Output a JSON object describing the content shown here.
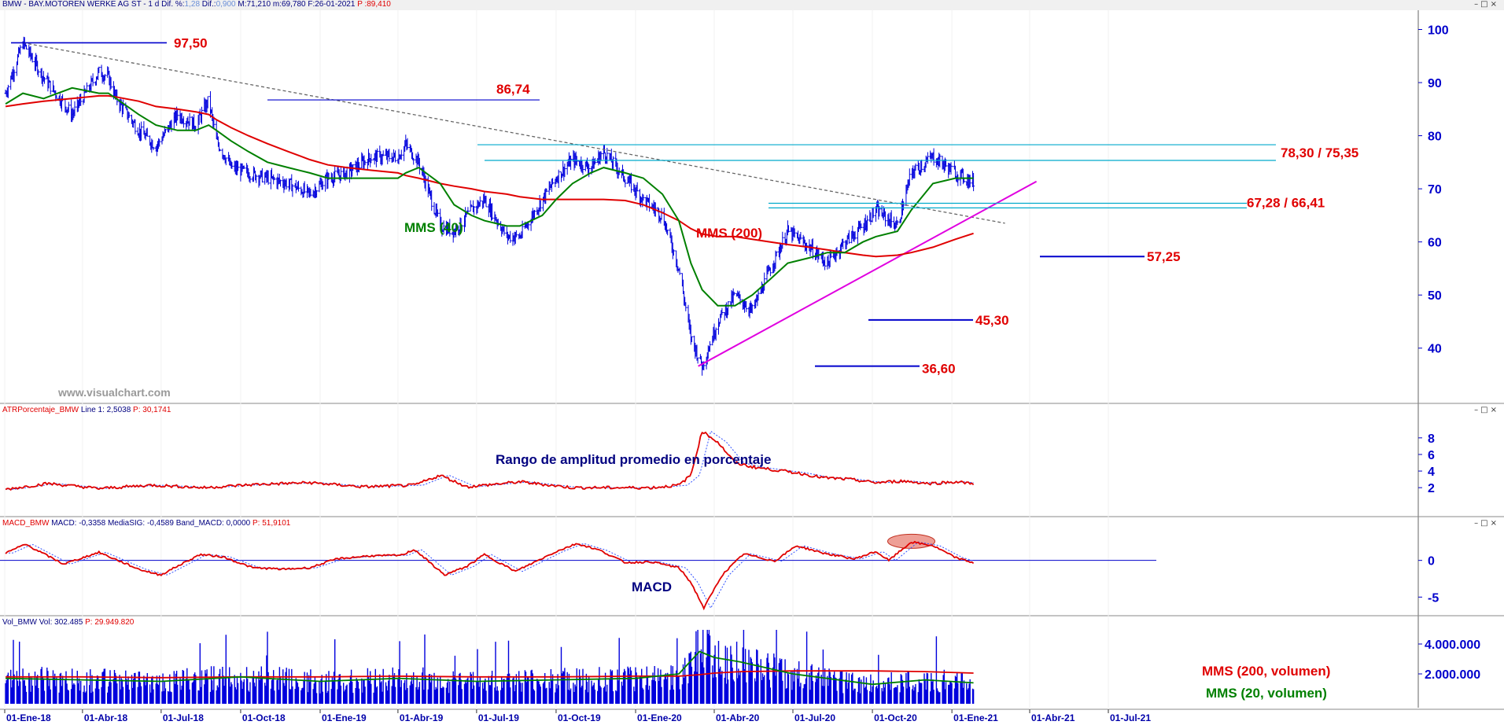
{
  "header": {
    "symbol": "BMW - BAY.MOTOREN WERKE AG ST",
    "sep": " - ",
    "timeframe": "1 d",
    "dif_pct_label": "Dif. %:",
    "dif_pct": "1,28",
    "dif_label": "Dif.:",
    "dif": "0,900",
    "max_label": "M:",
    "max": "71,210",
    "min_label": "m:",
    "min": "69,780",
    "date_label": "F:",
    "date": "26-01-2021",
    "price_label": "P :",
    "price": "89,410"
  },
  "window_buttons": "–□×",
  "watermark": "www.visualchart.com",
  "colors": {
    "price_bars": "#0000dd",
    "mms40": "#008000",
    "mms200": "#e00000",
    "trend_support": "#e000e0",
    "level_lines": "#0000cc",
    "resistance_lines": "#00aacc",
    "axis_text": "#0000cc",
    "annotation_red": "#e00000"
  },
  "x_axis": {
    "ticks": [
      "01-Ene-18",
      "01-Abr-18",
      "01-Jul-18",
      "01-Oct-18",
      "01-Ene-19",
      "01-Abr-19",
      "01-Jul-19",
      "01-Oct-19",
      "01-Ene-20",
      "01-Abr-20",
      "01-Jul-20",
      "01-Oct-20",
      "01-Ene-21",
      "01-Abr-21",
      "01-Jul-21"
    ]
  },
  "panels": {
    "price": {
      "y_ticks": [
        "100",
        "90",
        "80",
        "70",
        "60",
        "50",
        "40"
      ],
      "labels": {
        "mms40": "MMS (40)",
        "mms200": "MMS (200)",
        "lvl_9750": "97,50",
        "lvl_8674": "86,74",
        "lvl_7830": "78,30 / 75,35",
        "lvl_6728": "67,28 / 66,41",
        "lvl_5725": "57,25",
        "lvl_4530": "45,30",
        "lvl_3660": "36,60"
      }
    },
    "atr": {
      "header_name": "ATRPorcentaje_BMW",
      "header_line": "Line 1:",
      "header_line_val": "2,5038",
      "header_p": "P: 30,1741",
      "title": "Rango de amplitud promedio en porcentaje",
      "y_ticks": [
        "8",
        "6",
        "4",
        "2"
      ]
    },
    "macd": {
      "header_name": "MACD_BMW",
      "header_macd": "MACD:",
      "header_macd_val": "-0,3358",
      "header_sig": "MediaSIG:",
      "header_sig_val": "-0,4589",
      "header_band": "Band_MACD:",
      "header_band_val": "0,0000",
      "header_p": "P: 51,9101",
      "title": "MACD",
      "y_ticks": [
        "0",
        "-5"
      ]
    },
    "volume": {
      "header_name": "Vol_BMW",
      "header_vol": "Vol:",
      "header_vol_val": "302.485",
      "header_p": "P: 29.949.820",
      "label_mms200": "MMS (200, volumen)",
      "label_mms20": "MMS (20, volumen)",
      "y_ticks": [
        "4.000.000",
        "2.000.000"
      ]
    }
  },
  "chart_data": [
    {
      "type": "line",
      "panel": "price",
      "ylim": [
        33,
        102
      ],
      "x": [
        "2018-01-02",
        "2018-01-22",
        "2018-02-15",
        "2018-03-20",
        "2018-04-20",
        "2018-05-01",
        "2018-05-10",
        "2018-06-05",
        "2018-06-25",
        "2018-07-20",
        "2018-08-10",
        "2018-08-25",
        "2018-09-03",
        "2018-09-20",
        "2018-10-10",
        "2018-11-01",
        "2018-11-25",
        "2018-12-20",
        "2019-01-10",
        "2019-02-01",
        "2019-03-01",
        "2019-04-01",
        "2019-04-10",
        "2019-04-25",
        "2019-05-20",
        "2019-06-05",
        "2019-06-25",
        "2019-07-10",
        "2019-08-05",
        "2019-08-20",
        "2019-09-15",
        "2019-10-01",
        "2019-10-20",
        "2019-11-10",
        "2019-11-25",
        "2019-12-20",
        "2020-01-10",
        "2020-02-01",
        "2020-02-20",
        "2020-03-05",
        "2020-03-18",
        "2020-04-05",
        "2020-04-25",
        "2020-05-15",
        "2020-06-05",
        "2020-06-25",
        "2020-07-20",
        "2020-08-10",
        "2020-08-30",
        "2020-09-20",
        "2020-10-05",
        "2020-10-30",
        "2020-11-15",
        "2020-12-10",
        "2021-01-05",
        "2021-01-26"
      ],
      "series": [
        {
          "key": "close",
          "values": [
            88,
            97.5,
            91,
            84,
            92,
            91,
            87,
            81,
            78,
            84,
            82,
            86.7,
            79,
            74,
            73,
            72,
            71,
            69,
            72,
            73,
            76,
            76,
            78.3,
            75,
            63,
            62,
            66,
            68,
            61,
            61,
            68,
            72,
            75.5,
            74,
            77,
            72,
            68,
            65,
            55,
            42,
            36.6,
            45,
            50,
            47,
            55,
            62,
            59,
            56,
            60,
            63,
            66,
            63,
            73,
            76,
            73,
            71.2
          ]
        },
        {
          "key": "mms40",
          "values": [
            86,
            88,
            87,
            89,
            88,
            88,
            87,
            84,
            82,
            81,
            81,
            82,
            81,
            79,
            77,
            75,
            74,
            73,
            72,
            72,
            72,
            72,
            73,
            74,
            71,
            67,
            65,
            64,
            63,
            63,
            65,
            68,
            71,
            73,
            74,
            73,
            72,
            69,
            64,
            56,
            51,
            48,
            48,
            50,
            53,
            56,
            57,
            58,
            58,
            60,
            61,
            62,
            66,
            71,
            72,
            72
          ]
        },
        {
          "key": "mms200",
          "values": [
            85.5,
            86,
            86.5,
            87,
            87.5,
            87.5,
            87.3,
            86.5,
            85.5,
            85,
            84.5,
            84,
            83,
            81.5,
            80,
            78.5,
            77,
            75.5,
            74.5,
            74,
            73.5,
            73,
            72.5,
            72,
            71,
            70.5,
            70,
            69.5,
            69,
            68.5,
            68,
            68,
            68,
            68,
            68,
            67.8,
            67,
            65.5,
            64,
            62.5,
            61.5,
            61,
            61,
            60.5,
            60,
            59.5,
            59,
            58.5,
            58,
            57.5,
            57.25,
            57.5,
            58,
            59,
            60.5,
            61.6
          ]
        }
      ],
      "levels": [
        97.5,
        86.74,
        78.3,
        75.35,
        67.28,
        66.41,
        57.25,
        45.3,
        36.6
      ],
      "downtrend_line": [
        [
          "2018-01-22",
          97.5
        ],
        [
          "2021-01-26",
          65.0
        ]
      ],
      "uptrend_line": [
        [
          "2020-03-18",
          36.6
        ],
        [
          "2021-01-26",
          70.5
        ]
      ]
    },
    {
      "type": "line",
      "panel": "atr",
      "ylim": [
        0.5,
        9.5
      ],
      "x": [
        "2018-01-02",
        "2018-02-20",
        "2018-04-20",
        "2018-06-20",
        "2018-08-20",
        "2018-10-20",
        "2018-12-20",
        "2019-02-20",
        "2019-04-20",
        "2019-05-20",
        "2019-06-20",
        "2019-08-20",
        "2019-10-20",
        "2019-12-20",
        "2020-01-20",
        "2020-02-20",
        "2020-03-05",
        "2020-03-18",
        "2020-04-05",
        "2020-04-25",
        "2020-05-15",
        "2020-06-05",
        "2020-07-05",
        "2020-08-05",
        "2020-09-05",
        "2020-10-05",
        "2020-11-05",
        "2020-12-05",
        "2021-01-05",
        "2021-01-26"
      ],
      "series": [
        {
          "key": "atr_pct",
          "values": [
            1.8,
            2.5,
            1.9,
            2.3,
            2.0,
            2.4,
            2.6,
            2.1,
            2.3,
            3.5,
            2.1,
            2.7,
            2.0,
            2.0,
            2.0,
            2.3,
            3.5,
            8.8,
            7.5,
            5.0,
            4.5,
            4.2,
            3.8,
            3.2,
            3.0,
            2.6,
            2.8,
            2.5,
            2.7,
            2.5
          ]
        }
      ]
    },
    {
      "type": "line",
      "panel": "macd",
      "ylim": [
        -7,
        3.5
      ],
      "x": [
        "2018-01-02",
        "2018-01-25",
        "2018-03-10",
        "2018-04-20",
        "2018-06-05",
        "2018-06-30",
        "2018-08-15",
        "2018-09-10",
        "2018-10-15",
        "2018-11-20",
        "2018-12-20",
        "2019-01-20",
        "2019-02-25",
        "2019-04-05",
        "2019-04-20",
        "2019-05-25",
        "2019-06-20",
        "2019-07-10",
        "2019-08-15",
        "2019-10-01",
        "2019-10-25",
        "2019-11-20",
        "2019-12-20",
        "2020-01-20",
        "2020-02-20",
        "2020-03-05",
        "2020-03-20",
        "2020-04-10",
        "2020-05-05",
        "2020-06-10",
        "2020-07-05",
        "2020-08-05",
        "2020-09-10",
        "2020-10-05",
        "2020-10-20",
        "2020-11-15",
        "2020-12-10",
        "2021-01-05",
        "2021-01-26"
      ],
      "series": [
        {
          "key": "macd",
          "values": [
            1.0,
            2.2,
            -0.5,
            1.1,
            -1.2,
            -2.0,
            0.8,
            0.5,
            -1.0,
            -1.2,
            -1.0,
            0.2,
            0.6,
            0.7,
            1.5,
            -2.0,
            -0.8,
            0.8,
            -1.5,
            1.2,
            2.3,
            1.4,
            -0.3,
            -0.2,
            -1.0,
            -3.0,
            -6.5,
            -2.0,
            0.9,
            -0.1,
            2.0,
            1.0,
            0.2,
            1.2,
            0.0,
            2.5,
            2.0,
            0.4,
            -0.34
          ]
        }
      ]
    },
    {
      "type": "bar",
      "panel": "volume",
      "ylim": [
        0,
        5000000
      ],
      "x": [
        "2018-01-02",
        "2018-04-01",
        "2018-07-01",
        "2018-10-01",
        "2019-01-01",
        "2019-04-01",
        "2019-07-01",
        "2019-10-01",
        "2020-01-01",
        "2020-02-20",
        "2020-03-15",
        "2020-04-01",
        "2020-05-01",
        "2020-07-01",
        "2020-10-01",
        "2020-12-01",
        "2021-01-26"
      ],
      "series": [
        {
          "key": "vol_mms200",
          "values": [
            1800000,
            1800000,
            1750000,
            1800000,
            1800000,
            1850000,
            1800000,
            1800000,
            1850000,
            1850000,
            1950000,
            2050000,
            2150000,
            2200000,
            2200000,
            2150000,
            2050000
          ]
        },
        {
          "key": "vol_mms20",
          "values": [
            1700000,
            1600000,
            1500000,
            1800000,
            1500000,
            1700000,
            1500000,
            1600000,
            1700000,
            2000000,
            3500000,
            3100000,
            2800000,
            2000000,
            1300000,
            1600000,
            1400000
          ]
        }
      ]
    }
  ]
}
